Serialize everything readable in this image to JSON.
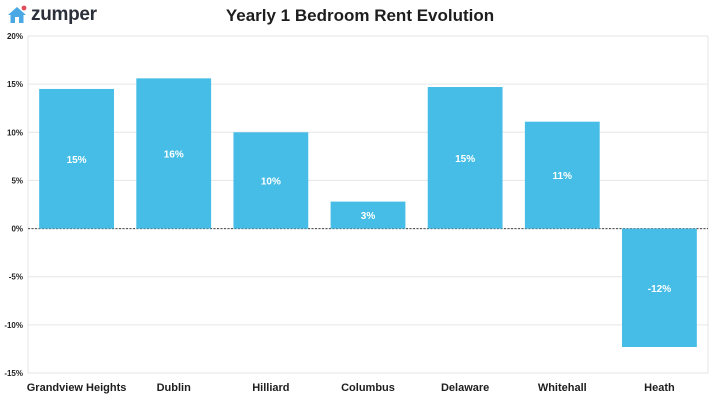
{
  "brand": {
    "name": "zumper",
    "icon": "house-icon",
    "color": "#2b2f3a",
    "accent": "#e14b5a"
  },
  "chart_data": {
    "type": "bar",
    "title": "Yearly 1 Bedroom Rent Evolution",
    "categories": [
      "Grandview Heights",
      "Dublin",
      "Hilliard",
      "Columbus",
      "Delaware",
      "Whitehall",
      "Heath"
    ],
    "values": [
      14.5,
      15.6,
      10.0,
      2.8,
      14.7,
      11.1,
      -12.3
    ],
    "value_labels": [
      "15%",
      "16%",
      "10%",
      "3%",
      "15%",
      "11%",
      "-12%"
    ],
    "ylim": [
      -15,
      20
    ],
    "yticks": [
      -15,
      -10,
      -5,
      0,
      5,
      10,
      15,
      20
    ],
    "ytick_labels": [
      "-15%",
      "-10%",
      "-5%",
      "0%",
      "5%",
      "10%",
      "15%",
      "20%"
    ],
    "bar_color": "#45bde6",
    "grid": true
  }
}
